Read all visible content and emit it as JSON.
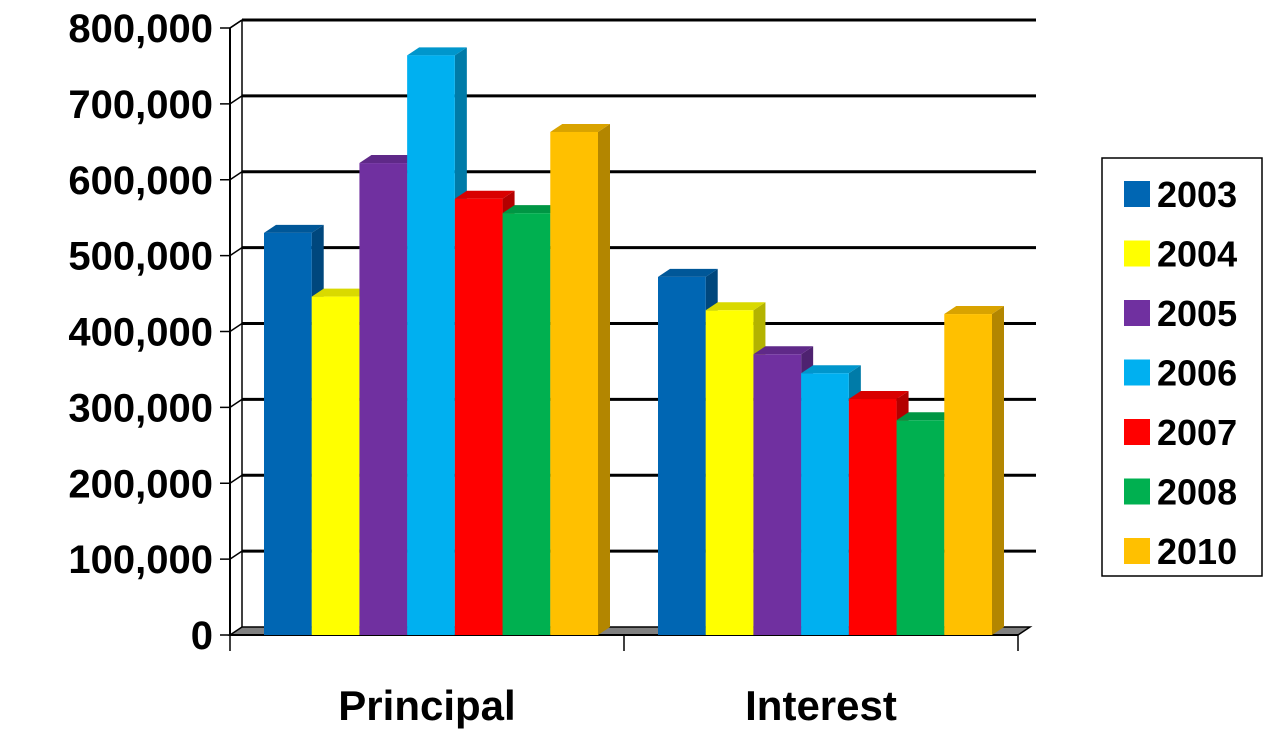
{
  "chart_data": {
    "type": "bar",
    "categories": [
      "Principal",
      "Interest"
    ],
    "series": [
      {
        "name": "2003",
        "values": [
          530000,
          472000
        ]
      },
      {
        "name": "2004",
        "values": [
          446000,
          428000
        ]
      },
      {
        "name": "2005",
        "values": [
          622000,
          370000
        ]
      },
      {
        "name": "2006",
        "values": [
          764000,
          345000
        ]
      },
      {
        "name": "2007",
        "values": [
          575000,
          311000
        ]
      },
      {
        "name": "2008",
        "values": [
          556000,
          283000
        ]
      },
      {
        "name": "2010",
        "values": [
          663000,
          423000
        ]
      }
    ],
    "ylim": [
      0,
      800000
    ],
    "yticks": [
      "0",
      "100,000",
      "200,000",
      "300,000",
      "400,000",
      "500,000",
      "600,000",
      "700,000",
      "800,000"
    ],
    "grid": true,
    "legend_position": "right",
    "style": "3d-bar",
    "title": "",
    "xlabel": "",
    "ylabel": ""
  },
  "colors": {
    "2003": "#0066B3",
    "2004": "#FFFF00",
    "2005": "#7030A0",
    "2006": "#00B0F0",
    "2007": "#FF0000",
    "2008": "#00B050",
    "2010": "#FFC000"
  }
}
